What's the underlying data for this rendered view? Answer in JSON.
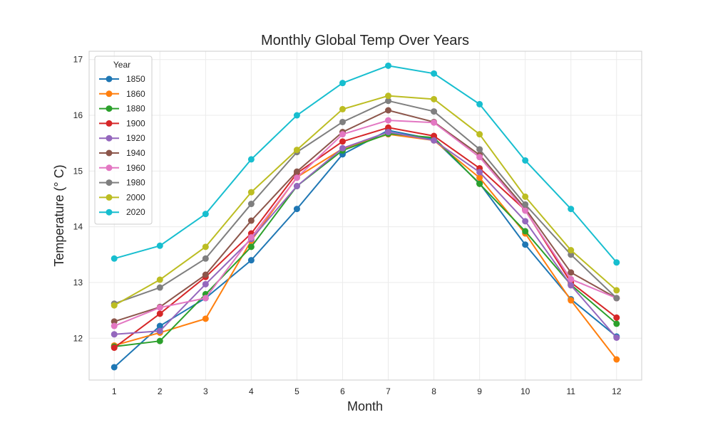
{
  "chart_data": {
    "type": "line",
    "title": "Monthly Global Temp Over Years",
    "xlabel": "Month",
    "ylabel": "Temperature (° C)",
    "x": [
      1,
      2,
      3,
      4,
      5,
      6,
      7,
      8,
      9,
      10,
      11,
      12
    ],
    "xlim": [
      0.45,
      12.55
    ],
    "ylim": [
      11.25,
      17.15
    ],
    "yticks": [
      12,
      13,
      14,
      15,
      16,
      17
    ],
    "grid": true,
    "legend": {
      "title": "Year",
      "placement": "top-left"
    },
    "series": [
      {
        "name": "1850",
        "color": "#1f77b4",
        "values": [
          11.48,
          12.22,
          12.72,
          13.4,
          14.32,
          15.3,
          15.73,
          15.57,
          14.78,
          13.68,
          12.7,
          12.03
        ]
      },
      {
        "name": "1860",
        "color": "#ff7f0e",
        "values": [
          11.87,
          12.1,
          12.35,
          13.75,
          14.89,
          15.4,
          15.66,
          15.55,
          14.88,
          13.88,
          12.68,
          11.62
        ]
      },
      {
        "name": "1880",
        "color": "#2ca02c",
        "values": [
          11.85,
          11.95,
          12.79,
          13.64,
          14.73,
          15.37,
          15.67,
          15.6,
          14.77,
          13.92,
          12.96,
          12.26
        ]
      },
      {
        "name": "1900",
        "color": "#d62728",
        "values": [
          11.83,
          12.44,
          13.1,
          13.88,
          14.96,
          15.53,
          15.78,
          15.63,
          15.05,
          14.3,
          13.0,
          12.37
        ]
      },
      {
        "name": "1920",
        "color": "#9467bd",
        "values": [
          12.07,
          12.13,
          12.97,
          13.78,
          14.73,
          15.41,
          15.7,
          15.55,
          14.98,
          14.1,
          12.95,
          12.01
        ]
      },
      {
        "name": "1940",
        "color": "#8c564b",
        "values": [
          12.3,
          12.56,
          13.14,
          14.11,
          14.99,
          15.7,
          16.09,
          15.88,
          15.29,
          14.33,
          13.18,
          12.72
        ]
      },
      {
        "name": "1960",
        "color": "#e377c2",
        "values": [
          12.22,
          12.55,
          12.72,
          13.81,
          14.88,
          15.66,
          15.91,
          15.87,
          15.25,
          14.29,
          13.06,
          12.72
        ]
      },
      {
        "name": "1980",
        "color": "#7f7f7f",
        "values": [
          12.62,
          12.91,
          13.43,
          14.41,
          15.34,
          15.88,
          16.26,
          16.07,
          15.39,
          14.4,
          13.5,
          12.72
        ]
      },
      {
        "name": "2000",
        "color": "#bcbd22",
        "values": [
          12.59,
          13.05,
          13.64,
          14.62,
          15.38,
          16.11,
          16.35,
          16.29,
          15.66,
          14.54,
          13.58,
          12.86
        ]
      },
      {
        "name": "2020",
        "color": "#17becf",
        "values": [
          13.43,
          13.66,
          14.23,
          15.21,
          16.0,
          16.58,
          16.89,
          16.75,
          16.2,
          15.19,
          14.32,
          13.36
        ]
      }
    ]
  }
}
